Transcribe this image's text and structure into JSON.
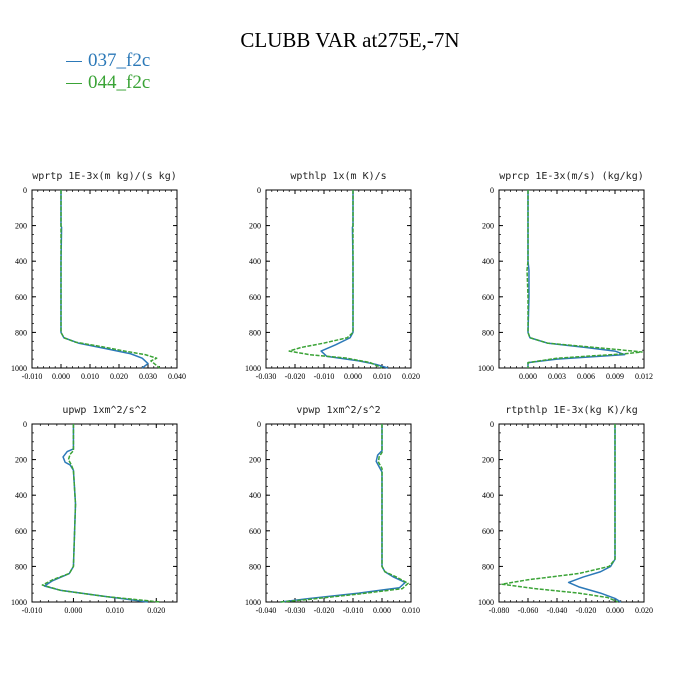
{
  "title": "CLUBB VAR at275E,-7N",
  "legend": [
    {
      "name": "037_f2c",
      "color": "#2c79b8"
    },
    {
      "name": "044_f2c",
      "color": "#3aa336"
    }
  ],
  "chart_data": [
    {
      "type": "line",
      "title": "wprtp  1E-3x(m kg)/(s kg)",
      "xlim": [
        -0.01,
        0.04
      ],
      "ylim": [
        1000,
        0
      ],
      "xticks": [
        "-0.010",
        "0.000",
        "0.010",
        "0.020",
        "0.030",
        "0.040"
      ],
      "yticks": [
        "0",
        "200",
        "400",
        "600",
        "800",
        "1000"
      ],
      "series": [
        {
          "name": "037_f2c",
          "x": [
            0.0,
            0.0,
            0.0002,
            0.0,
            0.0,
            0.001,
            0.006,
            0.015,
            0.024,
            0.028,
            0.03,
            0.028
          ],
          "y": [
            0,
            200,
            210,
            400,
            800,
            830,
            860,
            890,
            920,
            945,
            975,
            1000
          ]
        },
        {
          "name": "044_f2c",
          "x": [
            0.0,
            0.0,
            0.0,
            0.0,
            0.001,
            0.005,
            0.014,
            0.022,
            0.029,
            0.031,
            0.033,
            0.031,
            0.034
          ],
          "y": [
            0,
            200,
            400,
            800,
            830,
            855,
            880,
            905,
            925,
            935,
            945,
            960,
            1000
          ]
        }
      ]
    },
    {
      "type": "line",
      "title": "wpthlp  1x(m K)/s",
      "xlim": [
        -0.03,
        0.02
      ],
      "ylim": [
        1000,
        0
      ],
      "xticks": [
        "-0.030",
        "-0.020",
        "-0.010",
        "0.000",
        "0.010",
        "0.020"
      ],
      "yticks": [
        "0",
        "200",
        "400",
        "600",
        "800",
        "1000"
      ],
      "series": [
        {
          "name": "037_f2c",
          "x": [
            0.0,
            0.0,
            -0.0002,
            0.0,
            0.0,
            -0.001,
            -0.006,
            -0.011,
            -0.009,
            0.002,
            0.008,
            0.012
          ],
          "y": [
            0,
            200,
            210,
            400,
            800,
            830,
            870,
            905,
            935,
            960,
            980,
            1000
          ]
        },
        {
          "name": "044_f2c",
          "x": [
            0.0,
            0.0,
            0.0,
            0.0,
            -0.002,
            -0.01,
            -0.018,
            -0.022,
            -0.015,
            -0.002,
            0.006,
            0.01
          ],
          "y": [
            0,
            200,
            400,
            800,
            830,
            860,
            885,
            905,
            925,
            945,
            970,
            1000
          ]
        }
      ]
    },
    {
      "type": "line",
      "title": "wprcp  1E-3x(m/s) (kg/kg)",
      "xlim": [
        -0.003,
        0.012
      ],
      "ylim": [
        1000,
        0
      ],
      "xticks": [
        "0.000",
        "0.003",
        "0.006",
        "0.009",
        "0.012"
      ],
      "yticks": [
        "0",
        "200",
        "400",
        "600",
        "800",
        "1000"
      ],
      "series": [
        {
          "name": "037_f2c",
          "x": [
            0.0,
            0.0,
            0.0001,
            0.0001,
            0.0,
            0.0002,
            0.002,
            0.006,
            0.009,
            0.01,
            0.003,
            0.0,
            0.0
          ],
          "y": [
            0,
            400,
            450,
            600,
            800,
            830,
            860,
            885,
            905,
            925,
            950,
            970,
            1000
          ]
        },
        {
          "name": "044_f2c",
          "x": [
            0.0,
            0.0,
            -0.0001,
            0.0,
            0.0,
            0.0002,
            0.002,
            0.006,
            0.009,
            0.0118,
            0.01,
            0.003,
            0.0,
            0.0
          ],
          "y": [
            0,
            400,
            450,
            600,
            800,
            830,
            860,
            880,
            895,
            910,
            920,
            945,
            970,
            1000
          ]
        }
      ]
    },
    {
      "type": "line",
      "title": "upwp  1xm^2/s^2",
      "xlim": [
        -0.01,
        0.025
      ],
      "ylim": [
        1000,
        0
      ],
      "xticks": [
        "-0.010",
        "0.000",
        "0.010",
        "0.020"
      ],
      "yticks": [
        "0",
        "200",
        "400",
        "600",
        "800",
        "1000"
      ],
      "series": [
        {
          "name": "037_f2c",
          "x": [
            0.0,
            0.0,
            -0.0015,
            -0.0025,
            -0.002,
            -0.0008,
            0.0,
            0.0005,
            0.0,
            -0.001,
            -0.005,
            -0.007,
            -0.003,
            0.008,
            0.018
          ],
          "y": [
            0,
            140,
            155,
            185,
            215,
            230,
            260,
            450,
            800,
            840,
            880,
            910,
            935,
            970,
            1000
          ]
        },
        {
          "name": "044_f2c",
          "x": [
            0.0,
            0.0,
            -0.0008,
            -0.0012,
            -0.0005,
            0.0,
            0.0005,
            0.0,
            -0.001,
            -0.005,
            -0.0075,
            -0.003,
            0.008,
            0.021
          ],
          "y": [
            0,
            150,
            170,
            200,
            230,
            260,
            450,
            800,
            840,
            875,
            905,
            935,
            970,
            1000
          ]
        }
      ]
    },
    {
      "type": "line",
      "title": "vpwp  1xm^2/s^2",
      "xlim": [
        -0.04,
        0.01
      ],
      "ylim": [
        1000,
        0
      ],
      "xticks": [
        "-0.040",
        "-0.030",
        "-0.020",
        "-0.010",
        "0.000",
        "0.010"
      ],
      "yticks": [
        "0",
        "200",
        "400",
        "600",
        "800",
        "1000"
      ],
      "series": [
        {
          "name": "037_f2c",
          "x": [
            0.0,
            0.0,
            -0.0015,
            -0.002,
            -0.001,
            0.0,
            0.0,
            0.001,
            0.004,
            0.008,
            0.006,
            -0.008,
            -0.025,
            -0.035
          ],
          "y": [
            0,
            150,
            175,
            210,
            240,
            270,
            800,
            830,
            860,
            890,
            920,
            950,
            980,
            1000
          ]
        },
        {
          "name": "044_f2c",
          "x": [
            0.0,
            0.0,
            -0.001,
            -0.0012,
            0.0,
            0.0,
            0.001,
            0.005,
            0.009,
            0.007,
            -0.008,
            -0.025,
            -0.035
          ],
          "y": [
            0,
            160,
            185,
            215,
            250,
            800,
            830,
            860,
            895,
            925,
            955,
            985,
            1000
          ]
        }
      ]
    },
    {
      "type": "line",
      "title": "rtpthlp  1E-3x(kg K)/kg",
      "xlim": [
        -0.08,
        0.02
      ],
      "ylim": [
        1000,
        0
      ],
      "xticks": [
        "-0.080",
        "-0.060",
        "-0.040",
        "-0.020",
        "0.000",
        "0.020"
      ],
      "yticks": [
        "0",
        "200",
        "400",
        "600",
        "800",
        "1000"
      ],
      "series": [
        {
          "name": "037_f2c",
          "x": [
            0.0,
            0.0,
            -0.003,
            -0.01,
            -0.022,
            -0.032,
            -0.025,
            -0.01,
            0.0,
            0.004
          ],
          "y": [
            0,
            760,
            800,
            830,
            860,
            890,
            915,
            950,
            980,
            1000
          ]
        },
        {
          "name": "044_f2c",
          "x": [
            0.0,
            0.0,
            -0.004,
            -0.025,
            -0.06,
            -0.078,
            -0.055,
            -0.025,
            -0.005,
            0.002
          ],
          "y": [
            0,
            760,
            800,
            840,
            875,
            900,
            925,
            950,
            975,
            1000
          ]
        }
      ]
    }
  ]
}
